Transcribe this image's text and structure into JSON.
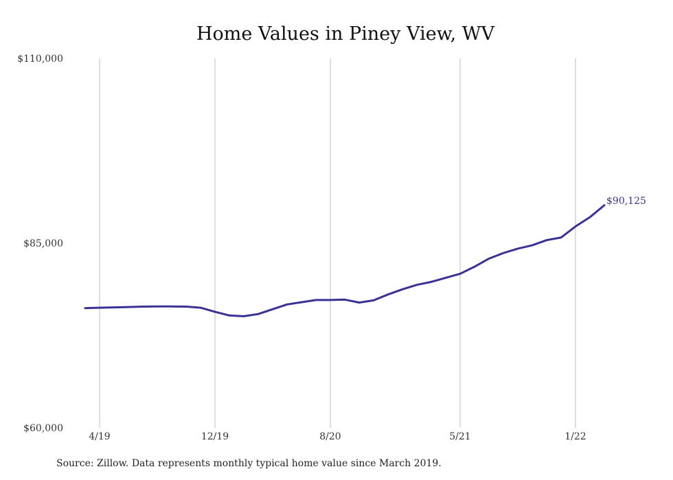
{
  "chart_data": {
    "type": "line",
    "title": "Home Values in Piney View, WV",
    "xlabel": "",
    "ylabel": "",
    "ylim": [
      60000,
      110000
    ],
    "yticks": [
      {
        "value": 60000,
        "label": "$60,000"
      },
      {
        "value": 85000,
        "label": "$85,000"
      },
      {
        "value": 110000,
        "label": "$110,000"
      }
    ],
    "xticks": [
      {
        "date": "2019-04",
        "label": "4/19"
      },
      {
        "date": "2019-12",
        "label": "12/19"
      },
      {
        "date": "2020-08",
        "label": "8/20"
      },
      {
        "date": "2021-05",
        "label": "5/21"
      },
      {
        "date": "2022-01",
        "label": "1/22"
      }
    ],
    "grid": "vertical",
    "series": [
      {
        "color": "#3a3194",
        "end_label": "$90,125",
        "points": [
          {
            "date": "2019-03",
            "value": 76200
          },
          {
            "date": "2019-04",
            "value": 76250
          },
          {
            "date": "2019-05",
            "value": 76300
          },
          {
            "date": "2019-06",
            "value": 76350
          },
          {
            "date": "2019-07",
            "value": 76400
          },
          {
            "date": "2019-08",
            "value": 76420
          },
          {
            "date": "2019-09",
            "value": 76420
          },
          {
            "date": "2019-10",
            "value": 76400
          },
          {
            "date": "2019-11",
            "value": 76250
          },
          {
            "date": "2019-12",
            "value": 75700
          },
          {
            "date": "2020-01",
            "value": 75200
          },
          {
            "date": "2020-02",
            "value": 75100
          },
          {
            "date": "2020-03",
            "value": 75400
          },
          {
            "date": "2020-04",
            "value": 76050
          },
          {
            "date": "2020-05",
            "value": 76700
          },
          {
            "date": "2020-06",
            "value": 77000
          },
          {
            "date": "2020-07",
            "value": 77300
          },
          {
            "date": "2020-08",
            "value": 77300
          },
          {
            "date": "2020-09",
            "value": 77350
          },
          {
            "date": "2020-10",
            "value": 76950
          },
          {
            "date": "2020-11",
            "value": 77250
          },
          {
            "date": "2020-12",
            "value": 78050
          },
          {
            "date": "2021-01",
            "value": 78750
          },
          {
            "date": "2021-02",
            "value": 79350
          },
          {
            "date": "2021-03",
            "value": 79750
          },
          {
            "date": "2021-04",
            "value": 80300
          },
          {
            "date": "2021-05",
            "value": 80850
          },
          {
            "date": "2021-06",
            "value": 81800
          },
          {
            "date": "2021-07",
            "value": 82900
          },
          {
            "date": "2021-08",
            "value": 83650
          },
          {
            "date": "2021-09",
            "value": 84250
          },
          {
            "date": "2021-10",
            "value": 84700
          },
          {
            "date": "2021-11",
            "value": 85400
          },
          {
            "date": "2021-12",
            "value": 85750
          },
          {
            "date": "2022-01",
            "value": 87250
          },
          {
            "date": "2022-02",
            "value": 88500
          },
          {
            "date": "2022-03",
            "value": 90125
          }
        ]
      }
    ]
  },
  "source": "Source: Zillow. Data represents monthly typical home value since March 2019."
}
